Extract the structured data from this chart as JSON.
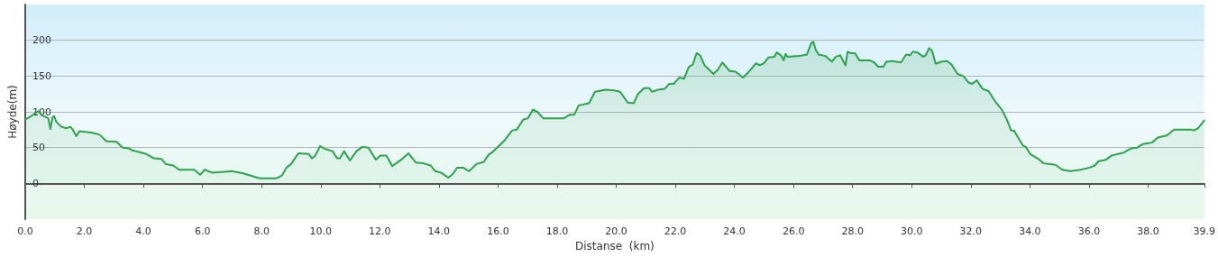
{
  "chart_data": {
    "type": "area",
    "xlabel": "Distanse  (km)",
    "ylabel": "Høyde(m)",
    "xlim": [
      0,
      39.9
    ],
    "xticks": [
      {
        "value": 0,
        "label": "0.0"
      },
      {
        "value": 2,
        "label": "2.0"
      },
      {
        "value": 4,
        "label": "4.0"
      },
      {
        "value": 6,
        "label": "6.0"
      },
      {
        "value": 8,
        "label": "8.0"
      },
      {
        "value": 10,
        "label": "10.0"
      },
      {
        "value": 12,
        "label": "12.0"
      },
      {
        "value": 14,
        "label": "14.0"
      },
      {
        "value": 16,
        "label": "16.0"
      },
      {
        "value": 18,
        "label": "18.0"
      },
      {
        "value": 20,
        "label": "20.0"
      },
      {
        "value": 22,
        "label": "22.0"
      },
      {
        "value": 24,
        "label": "24.0"
      },
      {
        "value": 26,
        "label": "26.0"
      },
      {
        "value": 28,
        "label": "28.0"
      },
      {
        "value": 30,
        "label": "30.0"
      },
      {
        "value": 32,
        "label": "32.0"
      },
      {
        "value": 34,
        "label": "34.0"
      },
      {
        "value": 36,
        "label": "36.0"
      },
      {
        "value": 38,
        "label": "38.0"
      },
      {
        "value": 39.9,
        "label": "39.9"
      }
    ],
    "ylim": [
      -50,
      250
    ],
    "yticks": [
      0,
      50,
      100,
      150,
      200
    ],
    "grid": "y",
    "marker": "none",
    "line_style": "solid",
    "series": [
      {
        "color": "#2ea24c",
        "x": [
          0,
          0.2,
          0.44,
          0.57,
          0.78,
          0.85,
          0.93,
          0.98,
          1.05,
          1.23,
          1.38,
          1.53,
          1.61,
          1.73,
          1.83,
          2.24,
          2.52,
          2.74,
          3.09,
          3.3,
          3.5,
          3.63,
          4.1,
          4.35,
          4.61,
          4.76,
          5.01,
          5.21,
          5.72,
          5.92,
          6.07,
          6.32,
          6.98,
          7.38,
          7.93,
          8.49,
          8.69,
          8.84,
          9.0,
          9.24,
          9.6,
          9.7,
          9.8,
          9.98,
          10.15,
          10.4,
          10.55,
          10.65,
          10.79,
          10.99,
          11.21,
          11.41,
          11.61,
          11.87,
          12.02,
          12.22,
          12.42,
          12.72,
          12.97,
          13.22,
          13.47,
          13.72,
          13.87,
          14.07,
          14.32,
          14.47,
          14.62,
          14.82,
          15.02,
          15.27,
          15.52,
          15.68,
          15.82,
          16.22,
          16.48,
          16.63,
          16.85,
          17.01,
          17.18,
          17.33,
          17.53,
          18.23,
          18.43,
          18.58,
          18.73,
          19.08,
          19.28,
          19.63,
          19.93,
          20.13,
          20.39,
          20.59,
          20.74,
          20.94,
          21.12,
          21.22,
          21.42,
          21.64,
          21.79,
          21.94,
          22.14,
          22.29,
          22.46,
          22.59,
          22.72,
          22.84,
          22.99,
          23.29,
          23.44,
          23.59,
          23.84,
          24.04,
          24.29,
          24.49,
          24.73,
          24.85,
          25.0,
          25.15,
          25.35,
          25.43,
          25.57,
          25.67,
          25.73,
          25.8,
          26.2,
          26.45,
          26.6,
          26.67,
          26.75,
          26.85,
          27.08,
          27.3,
          27.43,
          27.58,
          27.76,
          27.83,
          27.93,
          28.08,
          28.23,
          28.58,
          28.73,
          28.86,
          29.04,
          29.14,
          29.34,
          29.64,
          29.81,
          29.94,
          30.04,
          30.19,
          30.39,
          30.47,
          30.59,
          30.69,
          30.81,
          30.99,
          31.2,
          31.35,
          31.55,
          31.75,
          31.92,
          32.05,
          32.2,
          32.4,
          32.6,
          32.85,
          33.05,
          33.21,
          33.36,
          33.46,
          33.76,
          33.86,
          34.01,
          34.29,
          34.46,
          34.86,
          35.1,
          35.37,
          35.72,
          36.02,
          36.2,
          36.32,
          36.57,
          36.77,
          37.18,
          37.43,
          37.63,
          37.83,
          38.13,
          38.33,
          38.63,
          38.88,
          39.46,
          39.54,
          39.69,
          39.9
        ],
        "values": [
          89,
          94,
          101,
          95,
          91,
          76,
          93,
          94,
          86,
          79,
          77,
          79,
          75,
          66,
          73,
          71,
          68,
          59,
          58,
          50,
          49,
          46,
          41,
          35,
          34,
          27,
          25,
          19,
          19,
          12,
          19,
          15,
          17,
          14,
          7,
          7,
          11,
          22,
          27,
          42,
          41,
          35,
          38,
          52,
          48,
          45,
          35,
          35,
          45,
          32,
          45,
          51,
          50,
          33,
          39,
          39,
          24,
          33,
          42,
          29,
          28,
          25,
          17,
          15,
          8,
          13,
          22,
          22,
          17,
          27,
          30,
          40,
          44,
          60,
          74,
          75,
          89,
          91,
          103,
          100,
          91,
          91,
          96,
          96,
          109,
          112,
          128,
          131,
          130,
          128,
          113,
          112,
          125,
          133,
          133,
          128,
          131,
          132,
          139,
          139,
          148,
          146,
          163,
          166,
          182,
          179,
          165,
          153,
          159,
          169,
          157,
          156,
          148,
          156,
          168,
          165,
          168,
          176,
          177,
          183,
          179,
          172,
          181,
          177,
          178,
          180,
          196,
          198,
          187,
          180,
          178,
          170,
          177,
          179,
          165,
          184,
          182,
          182,
          172,
          172,
          169,
          163,
          163,
          170,
          171,
          169,
          180,
          179,
          184,
          183,
          177,
          179,
          189,
          185,
          167,
          170,
          171,
          166,
          153,
          150,
          141,
          139,
          144,
          132,
          129,
          113,
          103,
          90,
          74,
          74,
          53,
          51,
          41,
          34,
          28,
          26,
          19,
          17,
          19,
          22,
          25,
          31,
          33,
          39,
          43,
          49,
          50,
          55,
          57,
          64,
          67,
          75,
          75,
          74,
          77,
          88
        ]
      }
    ]
  }
}
